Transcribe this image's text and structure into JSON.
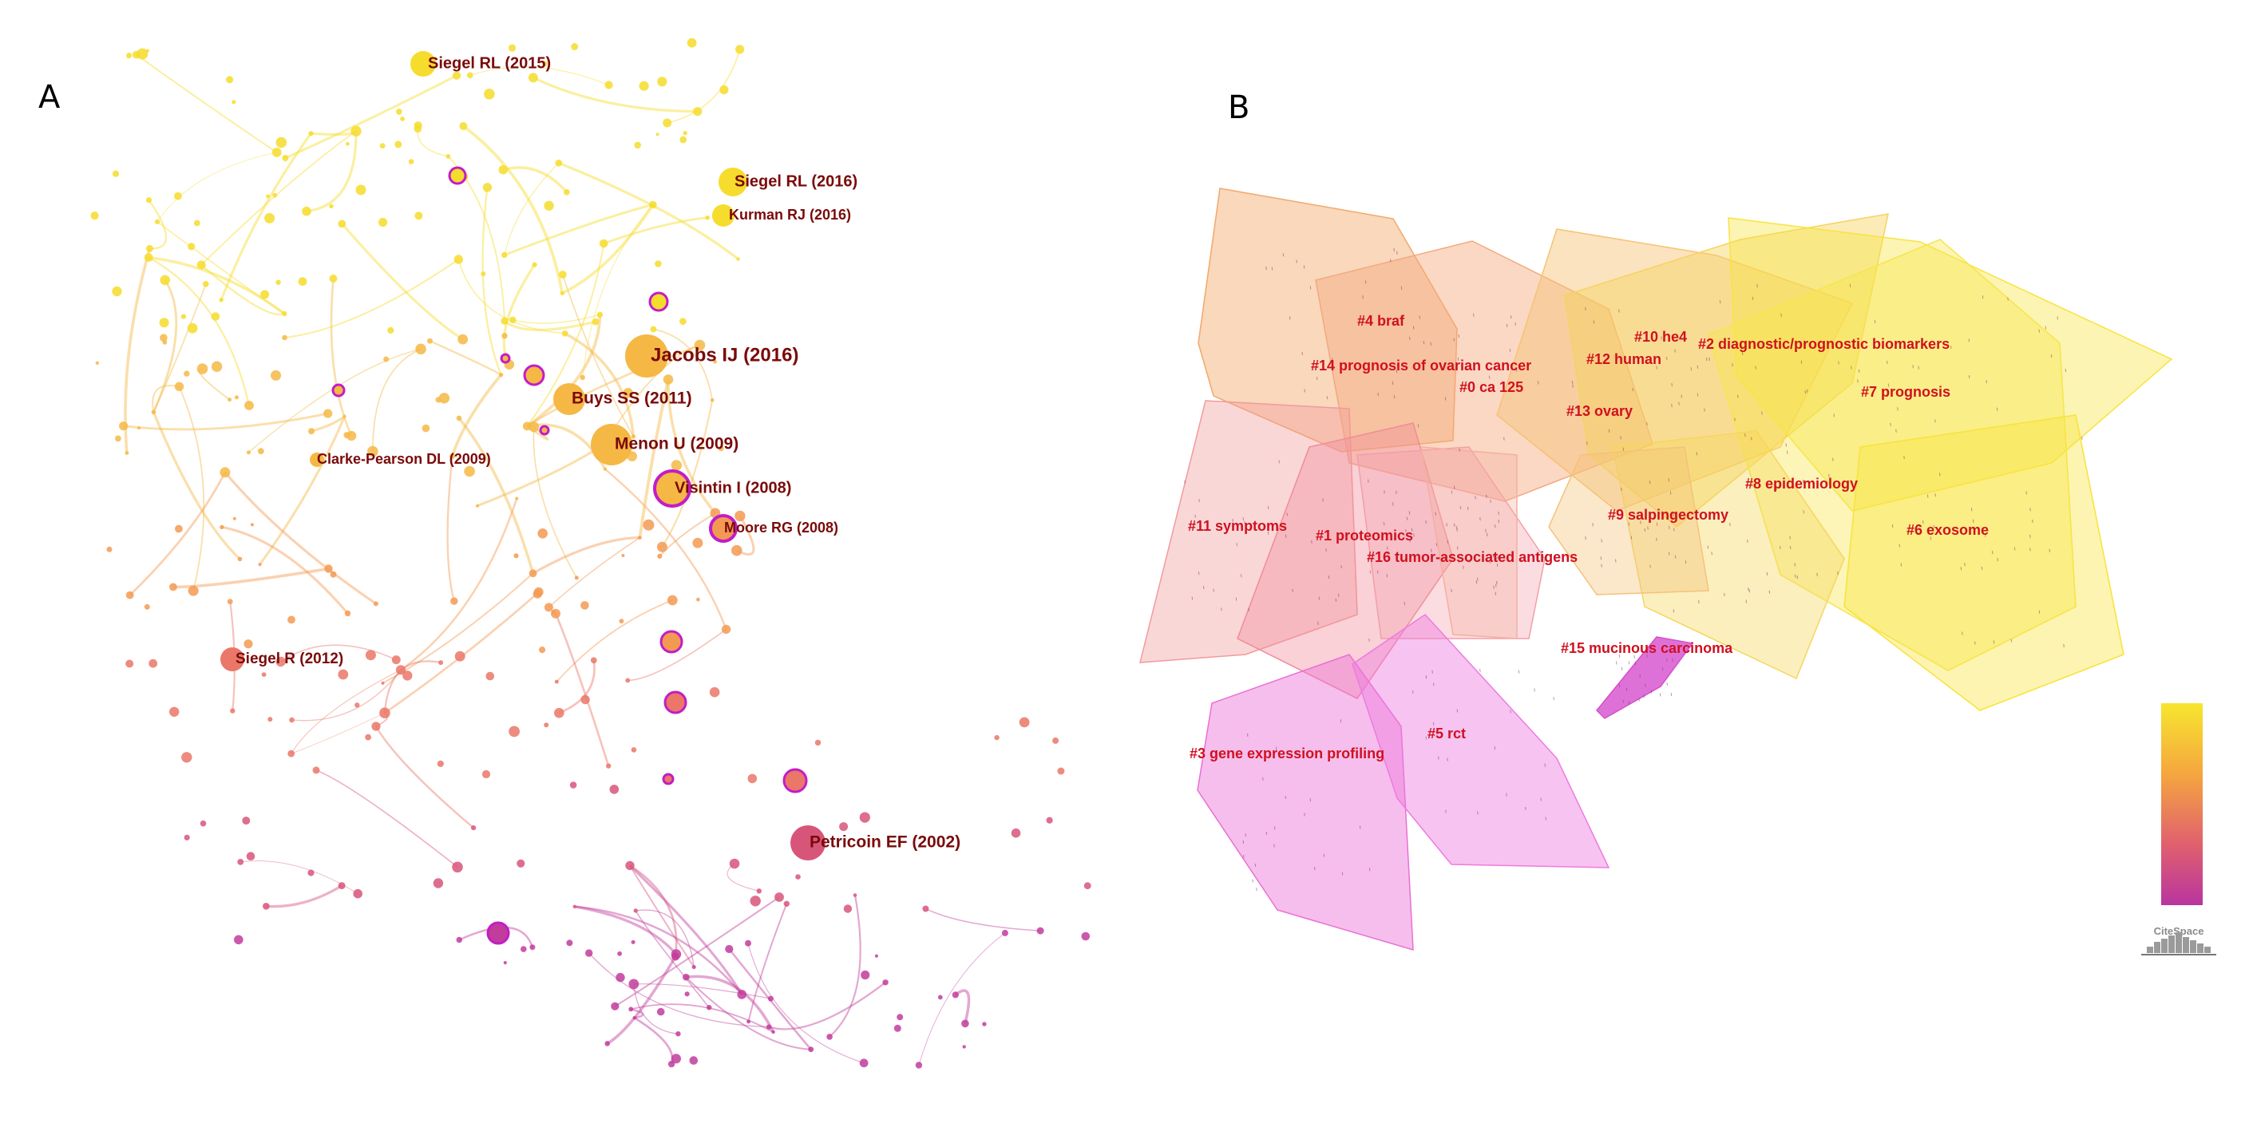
{
  "panels": {
    "a_label": "A",
    "b_label": "B"
  },
  "network_labels": [
    {
      "id": "siegel2015",
      "text": "Siegel RL (2015)"
    },
    {
      "id": "siegel2016",
      "text": "Siegel RL (2016)"
    },
    {
      "id": "kurman2016",
      "text": "Kurman RJ (2016)"
    },
    {
      "id": "jacobs2016",
      "text": "Jacobs IJ (2016)"
    },
    {
      "id": "buys2011",
      "text": "Buys SS (2011)"
    },
    {
      "id": "menon2009",
      "text": "Menon U (2009)"
    },
    {
      "id": "clarke2009",
      "text": "Clarke-Pearson DL (2009)"
    },
    {
      "id": "visintin2008",
      "text": "Visintin I (2008)"
    },
    {
      "id": "moore2008",
      "text": "Moore RG (2008)"
    },
    {
      "id": "siegel2012",
      "text": "Siegel R (2012)"
    },
    {
      "id": "petricoin2002",
      "text": "Petricoin EF (2002)"
    }
  ],
  "cluster_labels": [
    {
      "id": "c4",
      "text": "#4 braf"
    },
    {
      "id": "c14",
      "text": "#14 prognosis of ovarian cancer"
    },
    {
      "id": "c0",
      "text": "#0 ca 125"
    },
    {
      "id": "c10",
      "text": "#10 he4"
    },
    {
      "id": "c12",
      "text": "#12 human"
    },
    {
      "id": "c2",
      "text": "#2 diagnostic/prognostic biomarkers"
    },
    {
      "id": "c7",
      "text": "#7 prognosis"
    },
    {
      "id": "c13",
      "text": "#13 ovary"
    },
    {
      "id": "c8",
      "text": "#8 epidemiology"
    },
    {
      "id": "c9",
      "text": "#9 salpingectomy"
    },
    {
      "id": "c11",
      "text": "#11 symptoms"
    },
    {
      "id": "c1",
      "text": "#1 proteomics"
    },
    {
      "id": "c16",
      "text": "#16 tumor-associated antigens"
    },
    {
      "id": "c6",
      "text": "#6 exosome"
    },
    {
      "id": "c15",
      "text": "#15 mucinous carcinoma"
    },
    {
      "id": "c3",
      "text": "#3 gene expression profiling"
    },
    {
      "id": "c5",
      "text": "#5 rct"
    }
  ],
  "colors": {
    "recent": "#f5e12a",
    "mid": "#f5a342",
    "older": "#e8656a",
    "oldest": "#c23c9c",
    "label_dark_red": "#7a0a0a",
    "cluster_label_red": "#d01020",
    "centrality_ring": "#c21dc7"
  },
  "legend": {
    "gradient": [
      "#f7e62e",
      "#f5a63f",
      "#e0606e",
      "#b8359f"
    ]
  },
  "logo": {
    "text": "CiteSpace"
  }
}
